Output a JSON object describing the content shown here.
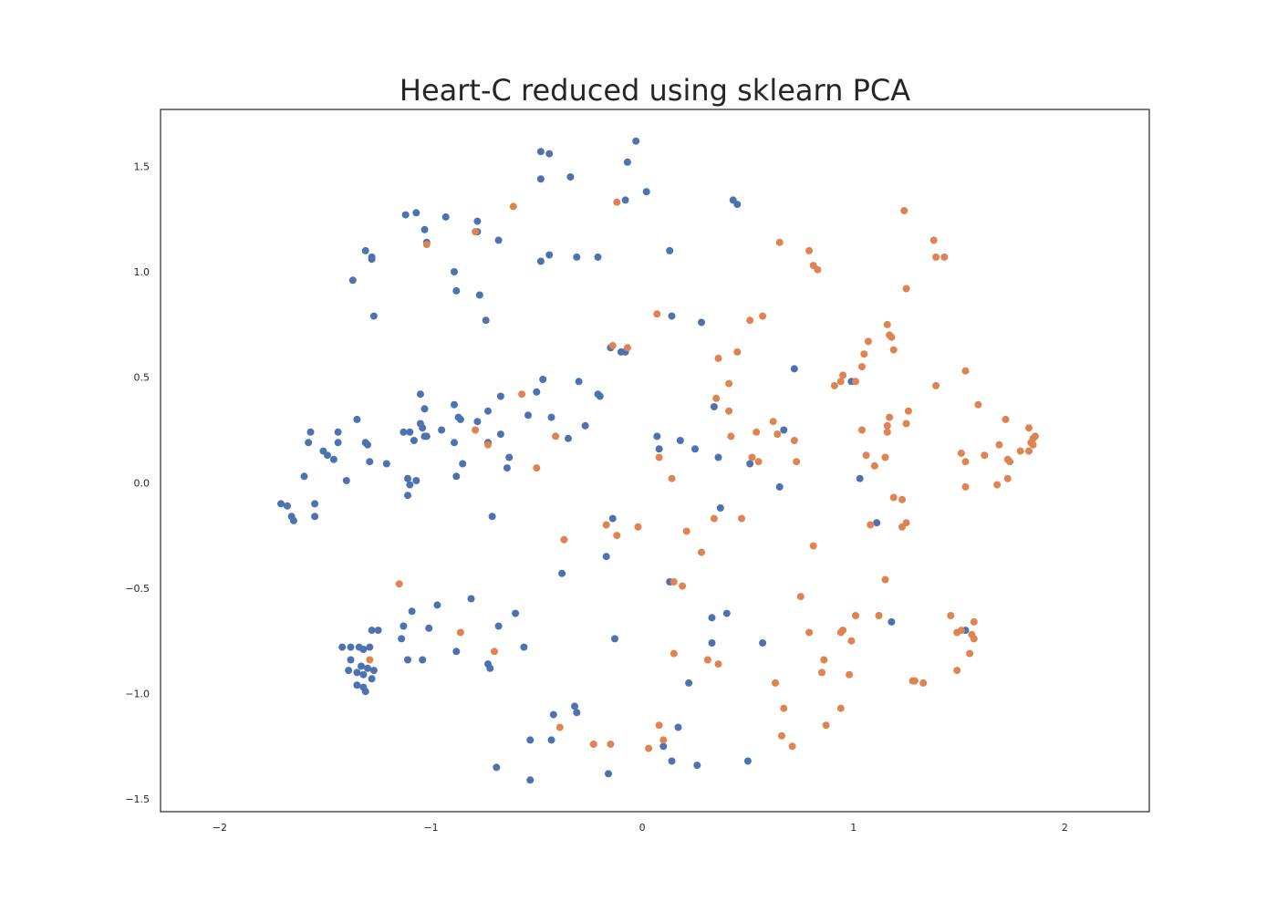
{
  "chart_data": {
    "type": "scatter",
    "title": "Heart-C reduced using sklearn PCA",
    "xlabel": "",
    "ylabel": "",
    "xlim": [
      -2.28,
      2.4
    ],
    "ylim": [
      -1.56,
      1.77
    ],
    "grid": false,
    "legend": "none",
    "xticks": [
      -2,
      -1,
      0,
      1,
      2
    ],
    "xtick_labels": [
      "−2",
      "−1",
      "0",
      "1",
      "2"
    ],
    "yticks": [
      -1.5,
      -1.0,
      -0.5,
      0.0,
      0.5,
      1.0,
      1.5
    ],
    "ytick_labels": [
      "−1.5",
      "−1.0",
      "−0.5",
      "0.0",
      "0.5",
      "1.0",
      "1.5"
    ],
    "series": [
      {
        "color": "#4c72b0",
        "points": [
          [
            -1.71,
            -0.1
          ],
          [
            -1.68,
            -0.11
          ],
          [
            -1.66,
            -0.16
          ],
          [
            -1.65,
            -0.18
          ],
          [
            -1.6,
            0.03
          ],
          [
            -1.58,
            0.19
          ],
          [
            -1.57,
            0.24
          ],
          [
            -1.55,
            -0.1
          ],
          [
            -1.55,
            -0.16
          ],
          [
            -1.51,
            0.15
          ],
          [
            -1.49,
            0.13
          ],
          [
            -1.46,
            0.11
          ],
          [
            -1.44,
            0.24
          ],
          [
            -1.44,
            0.19
          ],
          [
            -1.4,
            0.01
          ],
          [
            -1.35,
            0.3
          ],
          [
            -1.31,
            0.19
          ],
          [
            -1.3,
            0.18
          ],
          [
            -1.29,
            0.1
          ],
          [
            -1.21,
            0.09
          ],
          [
            -1.13,
            0.24
          ],
          [
            -1.1,
            0.24
          ],
          [
            -1.11,
            0.02
          ],
          [
            -1.1,
            -0.01
          ],
          [
            -1.08,
            0.2
          ],
          [
            -1.07,
            0.01
          ],
          [
            -1.05,
            0.28
          ],
          [
            -1.04,
            0.26
          ],
          [
            -1.03,
            0.22
          ],
          [
            -1.02,
            0.22
          ],
          [
            -1.11,
            -0.06
          ],
          [
            -1.05,
            0.42
          ],
          [
            -1.03,
            0.35
          ],
          [
            -0.95,
            0.25
          ],
          [
            -0.89,
            0.37
          ],
          [
            -0.89,
            0.19
          ],
          [
            -0.88,
            0.03
          ],
          [
            -0.87,
            0.31
          ],
          [
            -0.86,
            0.3
          ],
          [
            -0.85,
            0.09
          ],
          [
            -0.78,
            0.29
          ],
          [
            -0.73,
            0.34
          ],
          [
            -0.73,
            0.19
          ],
          [
            -0.67,
            0.41
          ],
          [
            -0.67,
            0.23
          ],
          [
            -0.64,
            0.07
          ],
          [
            -0.63,
            0.12
          ],
          [
            -0.54,
            0.32
          ],
          [
            -0.5,
            0.43
          ],
          [
            -0.47,
            0.49
          ],
          [
            -0.43,
            0.31
          ],
          [
            -0.35,
            0.21
          ],
          [
            -0.3,
            0.48
          ],
          [
            -0.27,
            0.27
          ],
          [
            -0.21,
            0.42
          ],
          [
            -0.2,
            0.41
          ],
          [
            -0.71,
            -0.16
          ],
          [
            -1.12,
            1.27
          ],
          [
            -1.07,
            1.28
          ],
          [
            -1.03,
            1.2
          ],
          [
            -1.02,
            1.14
          ],
          [
            -0.93,
            1.26
          ],
          [
            -0.78,
            1.24
          ],
          [
            -0.78,
            1.19
          ],
          [
            -0.68,
            1.15
          ],
          [
            -0.89,
            1.0
          ],
          [
            -0.88,
            0.91
          ],
          [
            -0.77,
            0.89
          ],
          [
            -0.74,
            0.77
          ],
          [
            -1.31,
            1.1
          ],
          [
            -1.28,
            1.07
          ],
          [
            -1.28,
            1.06
          ],
          [
            -1.37,
            0.96
          ],
          [
            -1.27,
            0.79
          ],
          [
            -0.48,
            1.57
          ],
          [
            -0.44,
            1.56
          ],
          [
            -0.48,
            1.44
          ],
          [
            -0.34,
            1.45
          ],
          [
            -0.48,
            1.05
          ],
          [
            -0.44,
            1.08
          ],
          [
            -0.31,
            1.07
          ],
          [
            -0.21,
            1.07
          ],
          [
            -0.03,
            1.62
          ],
          [
            -0.07,
            1.52
          ],
          [
            -0.08,
            1.34
          ],
          [
            0.02,
            1.38
          ],
          [
            0.43,
            1.34
          ],
          [
            0.45,
            1.32
          ],
          [
            0.13,
            1.1
          ],
          [
            0.14,
            0.79
          ],
          [
            0.28,
            0.76
          ],
          [
            -0.15,
            0.64
          ],
          [
            -0.1,
            0.62
          ],
          [
            -0.08,
            0.62
          ],
          [
            0.07,
            0.22
          ],
          [
            0.08,
            0.16
          ],
          [
            0.18,
            0.2
          ],
          [
            0.25,
            0.16
          ],
          [
            0.34,
            0.36
          ],
          [
            0.36,
            0.12
          ],
          [
            0.51,
            0.09
          ],
          [
            0.65,
            -0.02
          ],
          [
            0.67,
            0.25
          ],
          [
            0.72,
            0.54
          ],
          [
            0.99,
            0.48
          ],
          [
            1.03,
            0.02
          ],
          [
            0.37,
            -0.12
          ],
          [
            -0.14,
            -0.17
          ],
          [
            -0.17,
            -0.35
          ],
          [
            -0.38,
            -0.43
          ],
          [
            0.13,
            -0.47
          ],
          [
            1.11,
            -0.19
          ],
          [
            -1.42,
            -0.78
          ],
          [
            -1.38,
            -0.78
          ],
          [
            -1.34,
            -0.78
          ],
          [
            -1.32,
            -0.79
          ],
          [
            -1.29,
            -0.78
          ],
          [
            -1.3,
            -0.88
          ],
          [
            -1.27,
            -0.89
          ],
          [
            -1.32,
            -0.91
          ],
          [
            -1.35,
            -0.9
          ],
          [
            -1.38,
            -0.84
          ],
          [
            -1.39,
            -0.89
          ],
          [
            -1.32,
            -0.97
          ],
          [
            -1.31,
            -0.99
          ],
          [
            -1.28,
            -0.93
          ],
          [
            -1.35,
            -0.96
          ],
          [
            -1.33,
            -0.87
          ],
          [
            -1.28,
            -0.7
          ],
          [
            -1.25,
            -0.7
          ],
          [
            -1.09,
            -0.61
          ],
          [
            -1.13,
            -0.68
          ],
          [
            -1.14,
            -0.74
          ],
          [
            -1.11,
            -0.84
          ],
          [
            -1.04,
            -0.84
          ],
          [
            -1.01,
            -0.69
          ],
          [
            -0.97,
            -0.58
          ],
          [
            -0.81,
            -0.55
          ],
          [
            -0.88,
            -0.8
          ],
          [
            -0.73,
            -0.86
          ],
          [
            -0.72,
            -0.88
          ],
          [
            -0.68,
            -0.68
          ],
          [
            -0.6,
            -0.62
          ],
          [
            -0.56,
            -0.78
          ],
          [
            -0.13,
            -0.74
          ],
          [
            0.33,
            -0.64
          ],
          [
            0.33,
            -0.76
          ],
          [
            0.4,
            -0.62
          ],
          [
            0.57,
            -0.76
          ],
          [
            1.18,
            -0.66
          ],
          [
            1.53,
            -0.7
          ],
          [
            0.22,
            -0.95
          ],
          [
            -0.32,
            -1.06
          ],
          [
            -0.31,
            -1.09
          ],
          [
            -0.42,
            -1.1
          ],
          [
            -0.53,
            -1.22
          ],
          [
            -0.43,
            -1.22
          ],
          [
            -0.69,
            -1.35
          ],
          [
            -0.53,
            -1.41
          ],
          [
            -0.16,
            -1.38
          ],
          [
            0.1,
            -1.25
          ],
          [
            0.17,
            -1.16
          ],
          [
            0.14,
            -1.32
          ],
          [
            0.26,
            -1.34
          ],
          [
            0.5,
            -1.32
          ]
        ]
      },
      {
        "color": "#dd8452",
        "points": [
          [
            -0.61,
            1.31
          ],
          [
            -0.79,
            1.19
          ],
          [
            -1.02,
            1.13
          ],
          [
            -0.12,
            1.33
          ],
          [
            0.65,
            1.14
          ],
          [
            0.79,
            1.1
          ],
          [
            0.81,
            1.03
          ],
          [
            0.83,
            1.01
          ],
          [
            1.24,
            1.29
          ],
          [
            1.38,
            1.15
          ],
          [
            1.39,
            1.07
          ],
          [
            1.43,
            1.07
          ],
          [
            1.25,
            0.92
          ],
          [
            0.07,
            0.8
          ],
          [
            0.51,
            0.77
          ],
          [
            0.57,
            0.79
          ],
          [
            -0.14,
            0.65
          ],
          [
            -0.07,
            0.64
          ],
          [
            1.16,
            0.75
          ],
          [
            1.17,
            0.7
          ],
          [
            1.18,
            0.69
          ],
          [
            1.19,
            0.63
          ],
          [
            1.05,
            0.61
          ],
          [
            1.07,
            0.67
          ],
          [
            1.04,
            0.55
          ],
          [
            0.95,
            0.51
          ],
          [
            0.94,
            0.48
          ],
          [
            0.91,
            0.46
          ],
          [
            1.01,
            0.48
          ],
          [
            0.45,
            0.62
          ],
          [
            0.36,
            0.59
          ],
          [
            0.41,
            0.47
          ],
          [
            0.35,
            0.4
          ],
          [
            0.41,
            0.34
          ],
          [
            1.39,
            0.46
          ],
          [
            1.53,
            0.53
          ],
          [
            1.59,
            0.37
          ],
          [
            1.26,
            0.34
          ],
          [
            1.25,
            0.28
          ],
          [
            1.17,
            0.31
          ],
          [
            1.16,
            0.27
          ],
          [
            1.16,
            0.24
          ],
          [
            1.04,
            0.25
          ],
          [
            1.06,
            0.13
          ],
          [
            1.1,
            0.08
          ],
          [
            1.15,
            0.12
          ],
          [
            1.72,
            0.3
          ],
          [
            1.83,
            0.26
          ],
          [
            1.86,
            0.22
          ],
          [
            1.85,
            0.21
          ],
          [
            1.84,
            0.19
          ],
          [
            1.85,
            0.18
          ],
          [
            1.83,
            0.15
          ],
          [
            1.79,
            0.15
          ],
          [
            1.69,
            0.18
          ],
          [
            1.62,
            0.13
          ],
          [
            1.51,
            0.14
          ],
          [
            1.53,
            0.1
          ],
          [
            1.68,
            -0.01
          ],
          [
            1.73,
            0.02
          ],
          [
            1.73,
            0.11
          ],
          [
            1.74,
            0.1
          ],
          [
            1.53,
            -0.02
          ],
          [
            0.62,
            0.29
          ],
          [
            0.64,
            0.23
          ],
          [
            0.72,
            0.2
          ],
          [
            0.54,
            0.24
          ],
          [
            0.52,
            0.12
          ],
          [
            0.55,
            0.1
          ],
          [
            0.73,
            0.1
          ],
          [
            0.42,
            0.22
          ],
          [
            0.08,
            0.12
          ],
          [
            0.14,
            0.02
          ],
          [
            -0.41,
            0.22
          ],
          [
            -0.57,
            0.42
          ],
          [
            -0.79,
            0.25
          ],
          [
            -0.73,
            0.18
          ],
          [
            -0.5,
            0.07
          ],
          [
            1.19,
            -0.07
          ],
          [
            1.23,
            -0.08
          ],
          [
            1.25,
            -0.19
          ],
          [
            1.23,
            -0.21
          ],
          [
            1.08,
            -0.2
          ],
          [
            0.47,
            -0.17
          ],
          [
            0.34,
            -0.17
          ],
          [
            0.21,
            -0.23
          ],
          [
            0.28,
            -0.33
          ],
          [
            -0.17,
            -0.2
          ],
          [
            -0.12,
            -0.25
          ],
          [
            -0.02,
            -0.21
          ],
          [
            -0.37,
            -0.27
          ],
          [
            0.81,
            -0.3
          ],
          [
            0.15,
            -0.47
          ],
          [
            0.19,
            -0.49
          ],
          [
            0.75,
            -0.54
          ],
          [
            1.15,
            -0.46
          ],
          [
            1.01,
            -0.63
          ],
          [
            1.12,
            -0.63
          ],
          [
            0.95,
            -0.7
          ],
          [
            0.94,
            -0.71
          ],
          [
            0.99,
            -0.75
          ],
          [
            0.79,
            -0.71
          ],
          [
            0.86,
            -0.84
          ],
          [
            0.85,
            -0.9
          ],
          [
            0.98,
            -0.91
          ],
          [
            1.28,
            -0.94
          ],
          [
            1.29,
            -0.94
          ],
          [
            1.33,
            -0.95
          ],
          [
            1.46,
            -0.63
          ],
          [
            1.49,
            -0.71
          ],
          [
            1.51,
            -0.7
          ],
          [
            1.57,
            -0.66
          ],
          [
            1.56,
            -0.72
          ],
          [
            1.57,
            -0.74
          ],
          [
            1.55,
            -0.81
          ],
          [
            1.49,
            -0.89
          ],
          [
            0.15,
            -0.81
          ],
          [
            0.31,
            -0.84
          ],
          [
            0.36,
            -0.86
          ],
          [
            0.63,
            -0.95
          ],
          [
            0.67,
            -1.07
          ],
          [
            0.94,
            -1.07
          ],
          [
            0.87,
            -1.15
          ],
          [
            0.66,
            -1.2
          ],
          [
            0.71,
            -1.25
          ],
          [
            0.08,
            -1.15
          ],
          [
            0.1,
            -1.22
          ],
          [
            0.03,
            -1.26
          ],
          [
            -0.15,
            -1.24
          ],
          [
            -0.23,
            -1.24
          ],
          [
            -0.39,
            -1.16
          ],
          [
            -1.15,
            -0.48
          ],
          [
            -1.29,
            -0.84
          ],
          [
            -0.86,
            -0.71
          ],
          [
            -0.7,
            -0.8
          ]
        ]
      }
    ]
  }
}
